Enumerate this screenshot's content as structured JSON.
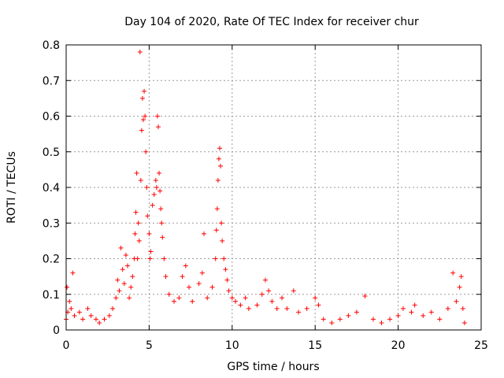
{
  "chart_data": {
    "type": "scatter",
    "title": "Day 104 of 2020, Rate Of TEC Index for receiver chur",
    "xlabel": "GPS time / hours",
    "ylabel": "ROTI / TECUs",
    "xlim": [
      0,
      25
    ],
    "ylim": [
      0,
      0.8
    ],
    "xticks": [
      0,
      5,
      10,
      15,
      20,
      25
    ],
    "yticks": [
      0,
      0.1,
      0.2,
      0.3,
      0.4,
      0.5,
      0.6,
      0.7,
      0.8
    ],
    "xtick_labels": [
      "0",
      "5",
      "10",
      "15",
      "20",
      "25"
    ],
    "ytick_labels": [
      "0",
      "0.1",
      "0.2",
      "0.3",
      "0.4",
      "0.5",
      "0.6",
      "0.7",
      "0.8"
    ],
    "grid": true,
    "marker": "+",
    "color": "#ff0000",
    "series": [
      {
        "points": [
          [
            0.0,
            0.03
          ],
          [
            0.05,
            0.12
          ],
          [
            0.1,
            0.05
          ],
          [
            0.2,
            0.08
          ],
          [
            0.3,
            0.06
          ],
          [
            0.4,
            0.16
          ],
          [
            0.5,
            0.04
          ],
          [
            0.8,
            0.05
          ],
          [
            1.0,
            0.03
          ],
          [
            1.3,
            0.06
          ],
          [
            1.5,
            0.04
          ],
          [
            1.8,
            0.03
          ],
          [
            2.0,
            0.02
          ],
          [
            2.3,
            0.03
          ],
          [
            2.6,
            0.04
          ],
          [
            2.8,
            0.06
          ],
          [
            3.0,
            0.09
          ],
          [
            3.1,
            0.14
          ],
          [
            3.2,
            0.11
          ],
          [
            3.3,
            0.23
          ],
          [
            3.4,
            0.17
          ],
          [
            3.5,
            0.13
          ],
          [
            3.6,
            0.21
          ],
          [
            3.7,
            0.18
          ],
          [
            3.8,
            0.09
          ],
          [
            3.9,
            0.12
          ],
          [
            4.0,
            0.15
          ],
          [
            4.1,
            0.2
          ],
          [
            4.15,
            0.27
          ],
          [
            4.2,
            0.33
          ],
          [
            4.25,
            0.44
          ],
          [
            4.3,
            0.2
          ],
          [
            4.35,
            0.3
          ],
          [
            4.4,
            0.25
          ],
          [
            4.45,
            0.78
          ],
          [
            4.5,
            0.42
          ],
          [
            4.55,
            0.56
          ],
          [
            4.6,
            0.65
          ],
          [
            4.65,
            0.59
          ],
          [
            4.7,
            0.67
          ],
          [
            4.75,
            0.6
          ],
          [
            4.8,
            0.5
          ],
          [
            4.85,
            0.4
          ],
          [
            4.9,
            0.32
          ],
          [
            5.0,
            0.27
          ],
          [
            5.05,
            0.2
          ],
          [
            5.1,
            0.22
          ],
          [
            5.2,
            0.35
          ],
          [
            5.3,
            0.38
          ],
          [
            5.4,
            0.42
          ],
          [
            5.45,
            0.4
          ],
          [
            5.5,
            0.6
          ],
          [
            5.55,
            0.57
          ],
          [
            5.6,
            0.44
          ],
          [
            5.65,
            0.39
          ],
          [
            5.7,
            0.34
          ],
          [
            5.75,
            0.3
          ],
          [
            5.8,
            0.26
          ],
          [
            5.9,
            0.2
          ],
          [
            6.0,
            0.15
          ],
          [
            6.2,
            0.1
          ],
          [
            6.5,
            0.08
          ],
          [
            6.8,
            0.09
          ],
          [
            7.0,
            0.15
          ],
          [
            7.2,
            0.18
          ],
          [
            7.4,
            0.12
          ],
          [
            7.6,
            0.08
          ],
          [
            8.0,
            0.13
          ],
          [
            8.2,
            0.16
          ],
          [
            8.3,
            0.27
          ],
          [
            8.5,
            0.09
          ],
          [
            8.8,
            0.12
          ],
          [
            9.0,
            0.2
          ],
          [
            9.05,
            0.28
          ],
          [
            9.1,
            0.34
          ],
          [
            9.15,
            0.42
          ],
          [
            9.2,
            0.48
          ],
          [
            9.25,
            0.51
          ],
          [
            9.3,
            0.46
          ],
          [
            9.35,
            0.3
          ],
          [
            9.4,
            0.25
          ],
          [
            9.5,
            0.2
          ],
          [
            9.6,
            0.17
          ],
          [
            9.7,
            0.14
          ],
          [
            9.8,
            0.11
          ],
          [
            10.0,
            0.09
          ],
          [
            10.2,
            0.08
          ],
          [
            10.5,
            0.07
          ],
          [
            10.8,
            0.09
          ],
          [
            11.0,
            0.06
          ],
          [
            11.5,
            0.07
          ],
          [
            11.8,
            0.1
          ],
          [
            12.0,
            0.14
          ],
          [
            12.2,
            0.11
          ],
          [
            12.4,
            0.08
          ],
          [
            12.7,
            0.06
          ],
          [
            13.0,
            0.09
          ],
          [
            13.3,
            0.06
          ],
          [
            13.7,
            0.11
          ],
          [
            14.0,
            0.05
          ],
          [
            14.5,
            0.06
          ],
          [
            15.0,
            0.09
          ],
          [
            15.2,
            0.07
          ],
          [
            15.5,
            0.03
          ],
          [
            16.0,
            0.02
          ],
          [
            16.5,
            0.03
          ],
          [
            17.0,
            0.04
          ],
          [
            17.5,
            0.05
          ],
          [
            18.0,
            0.095
          ],
          [
            18.5,
            0.03
          ],
          [
            19.0,
            0.02
          ],
          [
            19.5,
            0.03
          ],
          [
            20.0,
            0.04
          ],
          [
            20.3,
            0.06
          ],
          [
            20.8,
            0.05
          ],
          [
            21.0,
            0.07
          ],
          [
            21.5,
            0.04
          ],
          [
            22.0,
            0.05
          ],
          [
            22.5,
            0.03
          ],
          [
            23.0,
            0.06
          ],
          [
            23.3,
            0.16
          ],
          [
            23.5,
            0.08
          ],
          [
            23.7,
            0.12
          ],
          [
            23.8,
            0.15
          ],
          [
            23.9,
            0.06
          ],
          [
            24.0,
            0.02
          ]
        ]
      }
    ]
  }
}
